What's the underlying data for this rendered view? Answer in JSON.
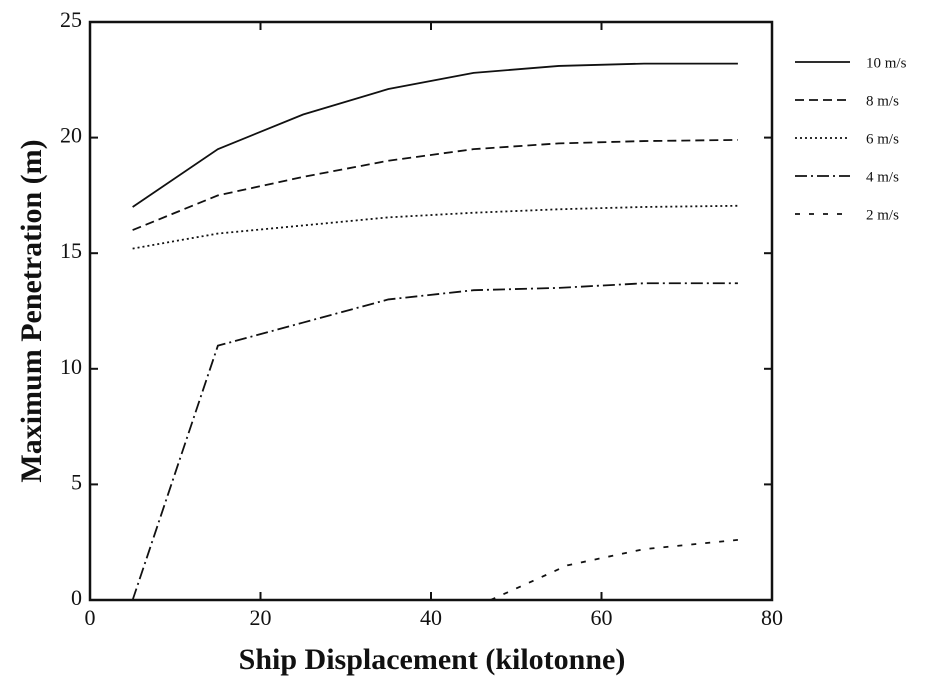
{
  "chart_data": {
    "type": "line",
    "xlabel": "Ship Displacement (kilotonne)",
    "ylabel": "Maximum Penetration (m)",
    "xlim": [
      0,
      80
    ],
    "xticks": [
      0,
      20,
      40,
      60,
      80
    ],
    "ylim": [
      0,
      25
    ],
    "yticks": [
      0,
      5,
      10,
      15,
      20,
      25
    ],
    "legend": "outside-right",
    "series": [
      {
        "name": "10 m/s",
        "color": "#111111",
        "dash": "solid",
        "x": [
          5,
          15,
          25,
          35,
          45,
          55,
          65,
          76
        ],
        "values": [
          17,
          19.5,
          21,
          22.1,
          22.8,
          23.1,
          23.2,
          23.2
        ]
      },
      {
        "name": "8 m/s",
        "color": "#111111",
        "dash": "dashed",
        "x": [
          5,
          15,
          25,
          35,
          45,
          55,
          65,
          76
        ],
        "values": [
          16,
          17.5,
          18.3,
          19,
          19.5,
          19.75,
          19.85,
          19.9
        ]
      },
      {
        "name": "6 m/s",
        "color": "#111111",
        "dash": "dotted",
        "x": [
          5,
          15,
          25,
          35,
          45,
          55,
          65,
          76
        ],
        "values": [
          15.2,
          15.85,
          16.2,
          16.55,
          16.75,
          16.9,
          17,
          17.05
        ]
      },
      {
        "name": "4 m/s",
        "color": "#111111",
        "dash": "dashdot",
        "x": [
          5,
          15,
          25,
          35,
          45,
          55,
          65,
          76
        ],
        "values": [
          0,
          11,
          12,
          13,
          13.4,
          13.5,
          13.7,
          13.7
        ]
      },
      {
        "name": "2 m/s",
        "color": "#111111",
        "dash": "sparse",
        "x": [
          47,
          56,
          65,
          76
        ],
        "values": [
          0,
          1.5,
          2.2,
          2.6
        ]
      }
    ]
  }
}
